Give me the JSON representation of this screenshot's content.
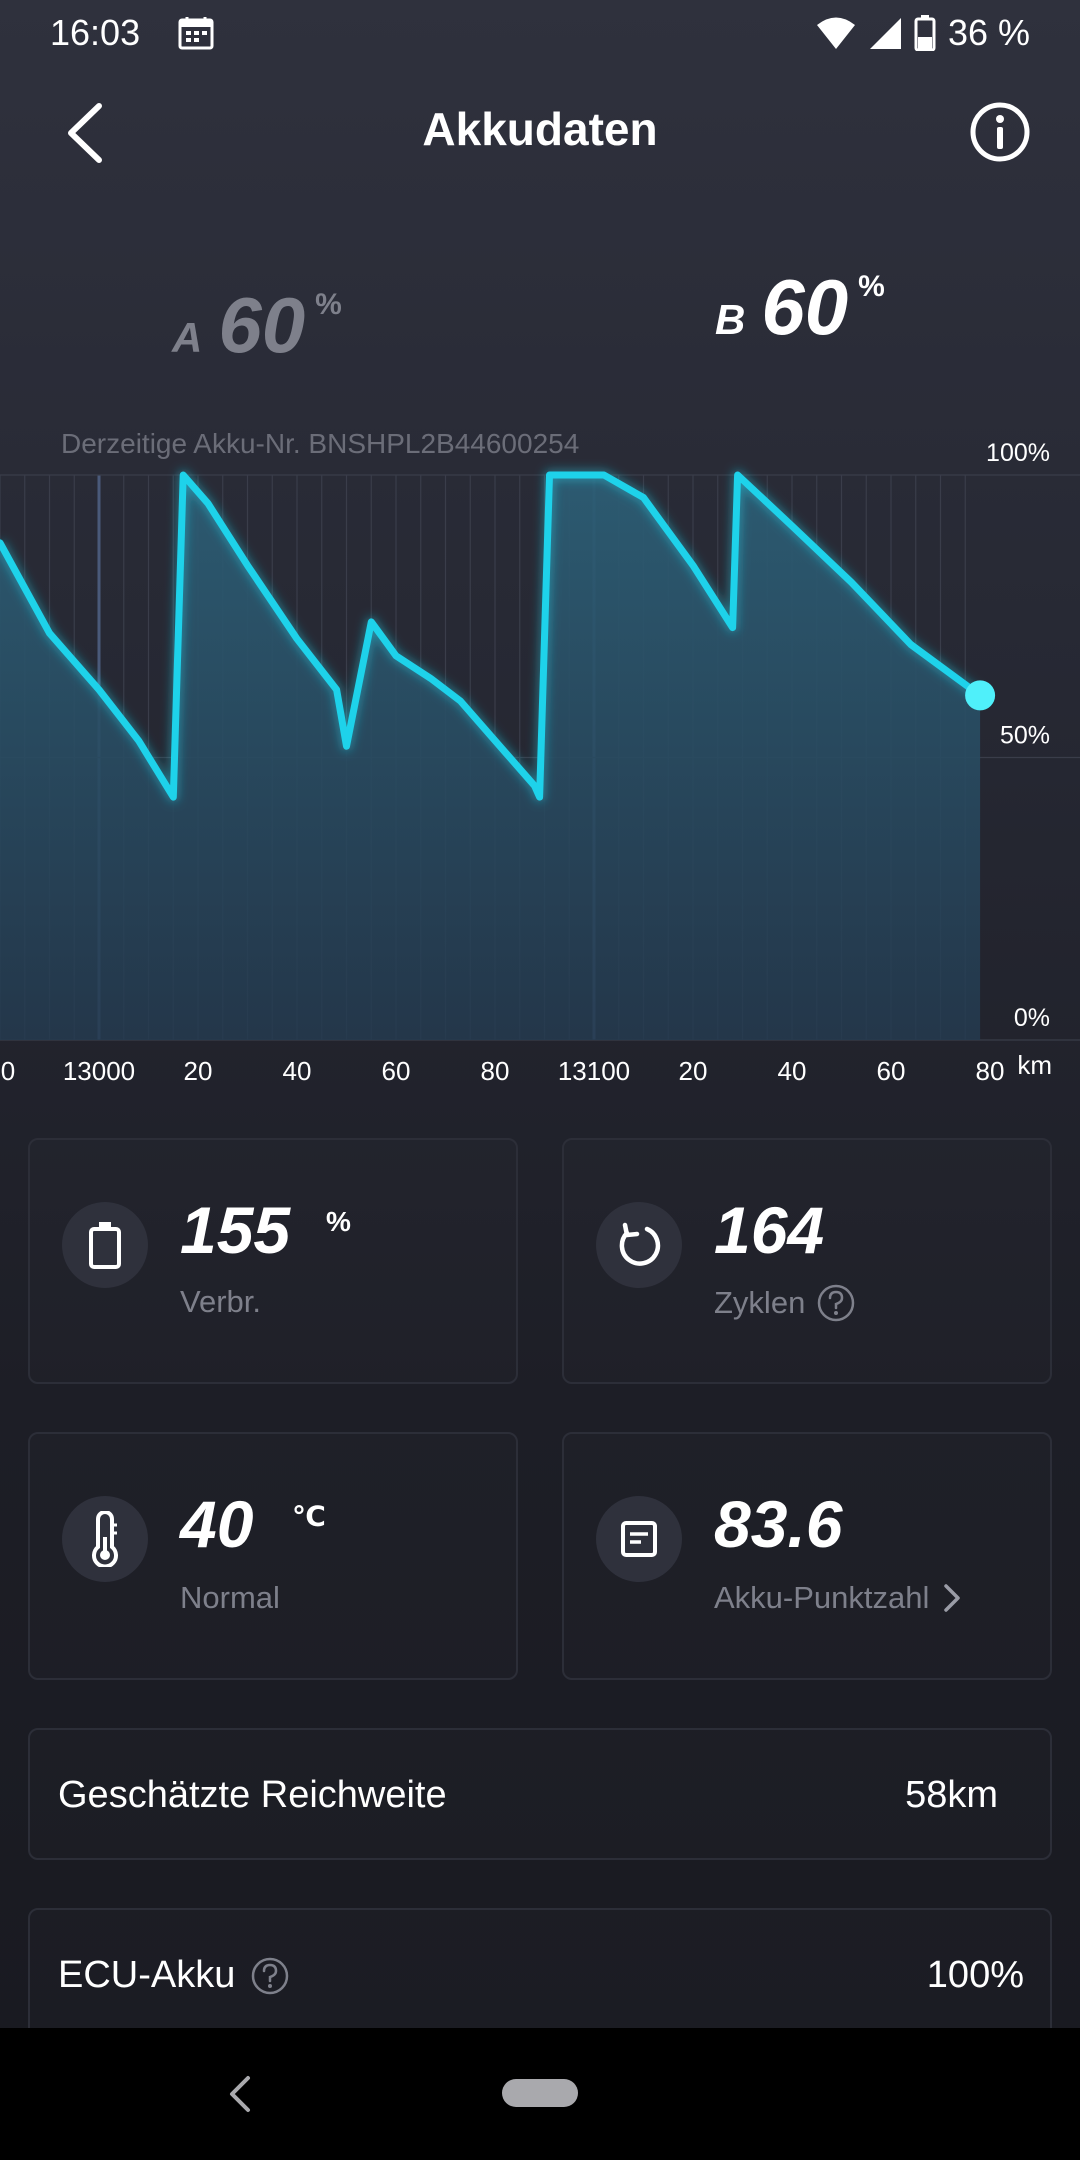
{
  "status_bar": {
    "time": "16:03",
    "battery_text": "36 %",
    "icons": [
      "calendar-icon",
      "wifi-icon",
      "cell-signal-icon",
      "battery-icon"
    ]
  },
  "header": {
    "title": "Akkudaten",
    "back_icon": "chevron-left-icon",
    "info_icon": "info-icon"
  },
  "batteries": {
    "a": {
      "letter": "A",
      "value": "60",
      "unit": "%"
    },
    "b": {
      "letter": "B",
      "value": "60",
      "unit": "%"
    }
  },
  "akku_nr": "Derzeitige Akku-Nr. BNSHPL2B44600254",
  "chart_data": {
    "type": "area",
    "title": "",
    "xlabel": "km",
    "ylabel": "",
    "x_tick_labels": [
      "0",
      "13000",
      "20",
      "40",
      "60",
      "80",
      "13100",
      "20",
      "40",
      "60",
      "80"
    ],
    "y_tick_labels": [
      "100%",
      "50%",
      "0%"
    ],
    "ylim": [
      0,
      100
    ],
    "xlim": [
      12980,
      13180
    ],
    "grid": true,
    "series": [
      {
        "color": "#1ed2ea",
        "x": [
          12980,
          12990,
          13000,
          13008,
          13015,
          13017,
          13022,
          13030,
          13040,
          13048,
          13050,
          13055,
          13060,
          13067,
          13073,
          13082,
          13088,
          13089,
          13091,
          13102,
          13110,
          13120,
          13128,
          13129,
          13140,
          13152,
          13164,
          13178
        ],
        "y": [
          88,
          72,
          62,
          53,
          43,
          100,
          95,
          84,
          71,
          62,
          52,
          74,
          68,
          64,
          60,
          51,
          45,
          43,
          100,
          100,
          96,
          84,
          73,
          100,
          91,
          81,
          70,
          61
        ]
      }
    ]
  },
  "cards": {
    "consumption": {
      "value": "155",
      "unit": "%",
      "label": "Verbr.",
      "icon": "battery-icon"
    },
    "cycles": {
      "value": "164",
      "label": "Zyklen",
      "icon": "refresh-icon",
      "help_icon": "help-icon"
    },
    "temperature": {
      "value": "40",
      "unit": "℃",
      "label": "Normal",
      "icon": "thermometer-icon"
    },
    "score": {
      "value": "83.6",
      "label": "Akku-Punktzahl",
      "icon": "document-icon",
      "chevron_icon": "chevron-right-icon"
    }
  },
  "range_row": {
    "label": "Geschätzte Reichweite",
    "value": "58km"
  },
  "ecu_row": {
    "label": "ECU-Akku",
    "value": "100%",
    "help_icon": "help-icon"
  },
  "colors": {
    "accent": "#1ed2ea",
    "background": "#262833",
    "muted_text": "#7e808b"
  }
}
